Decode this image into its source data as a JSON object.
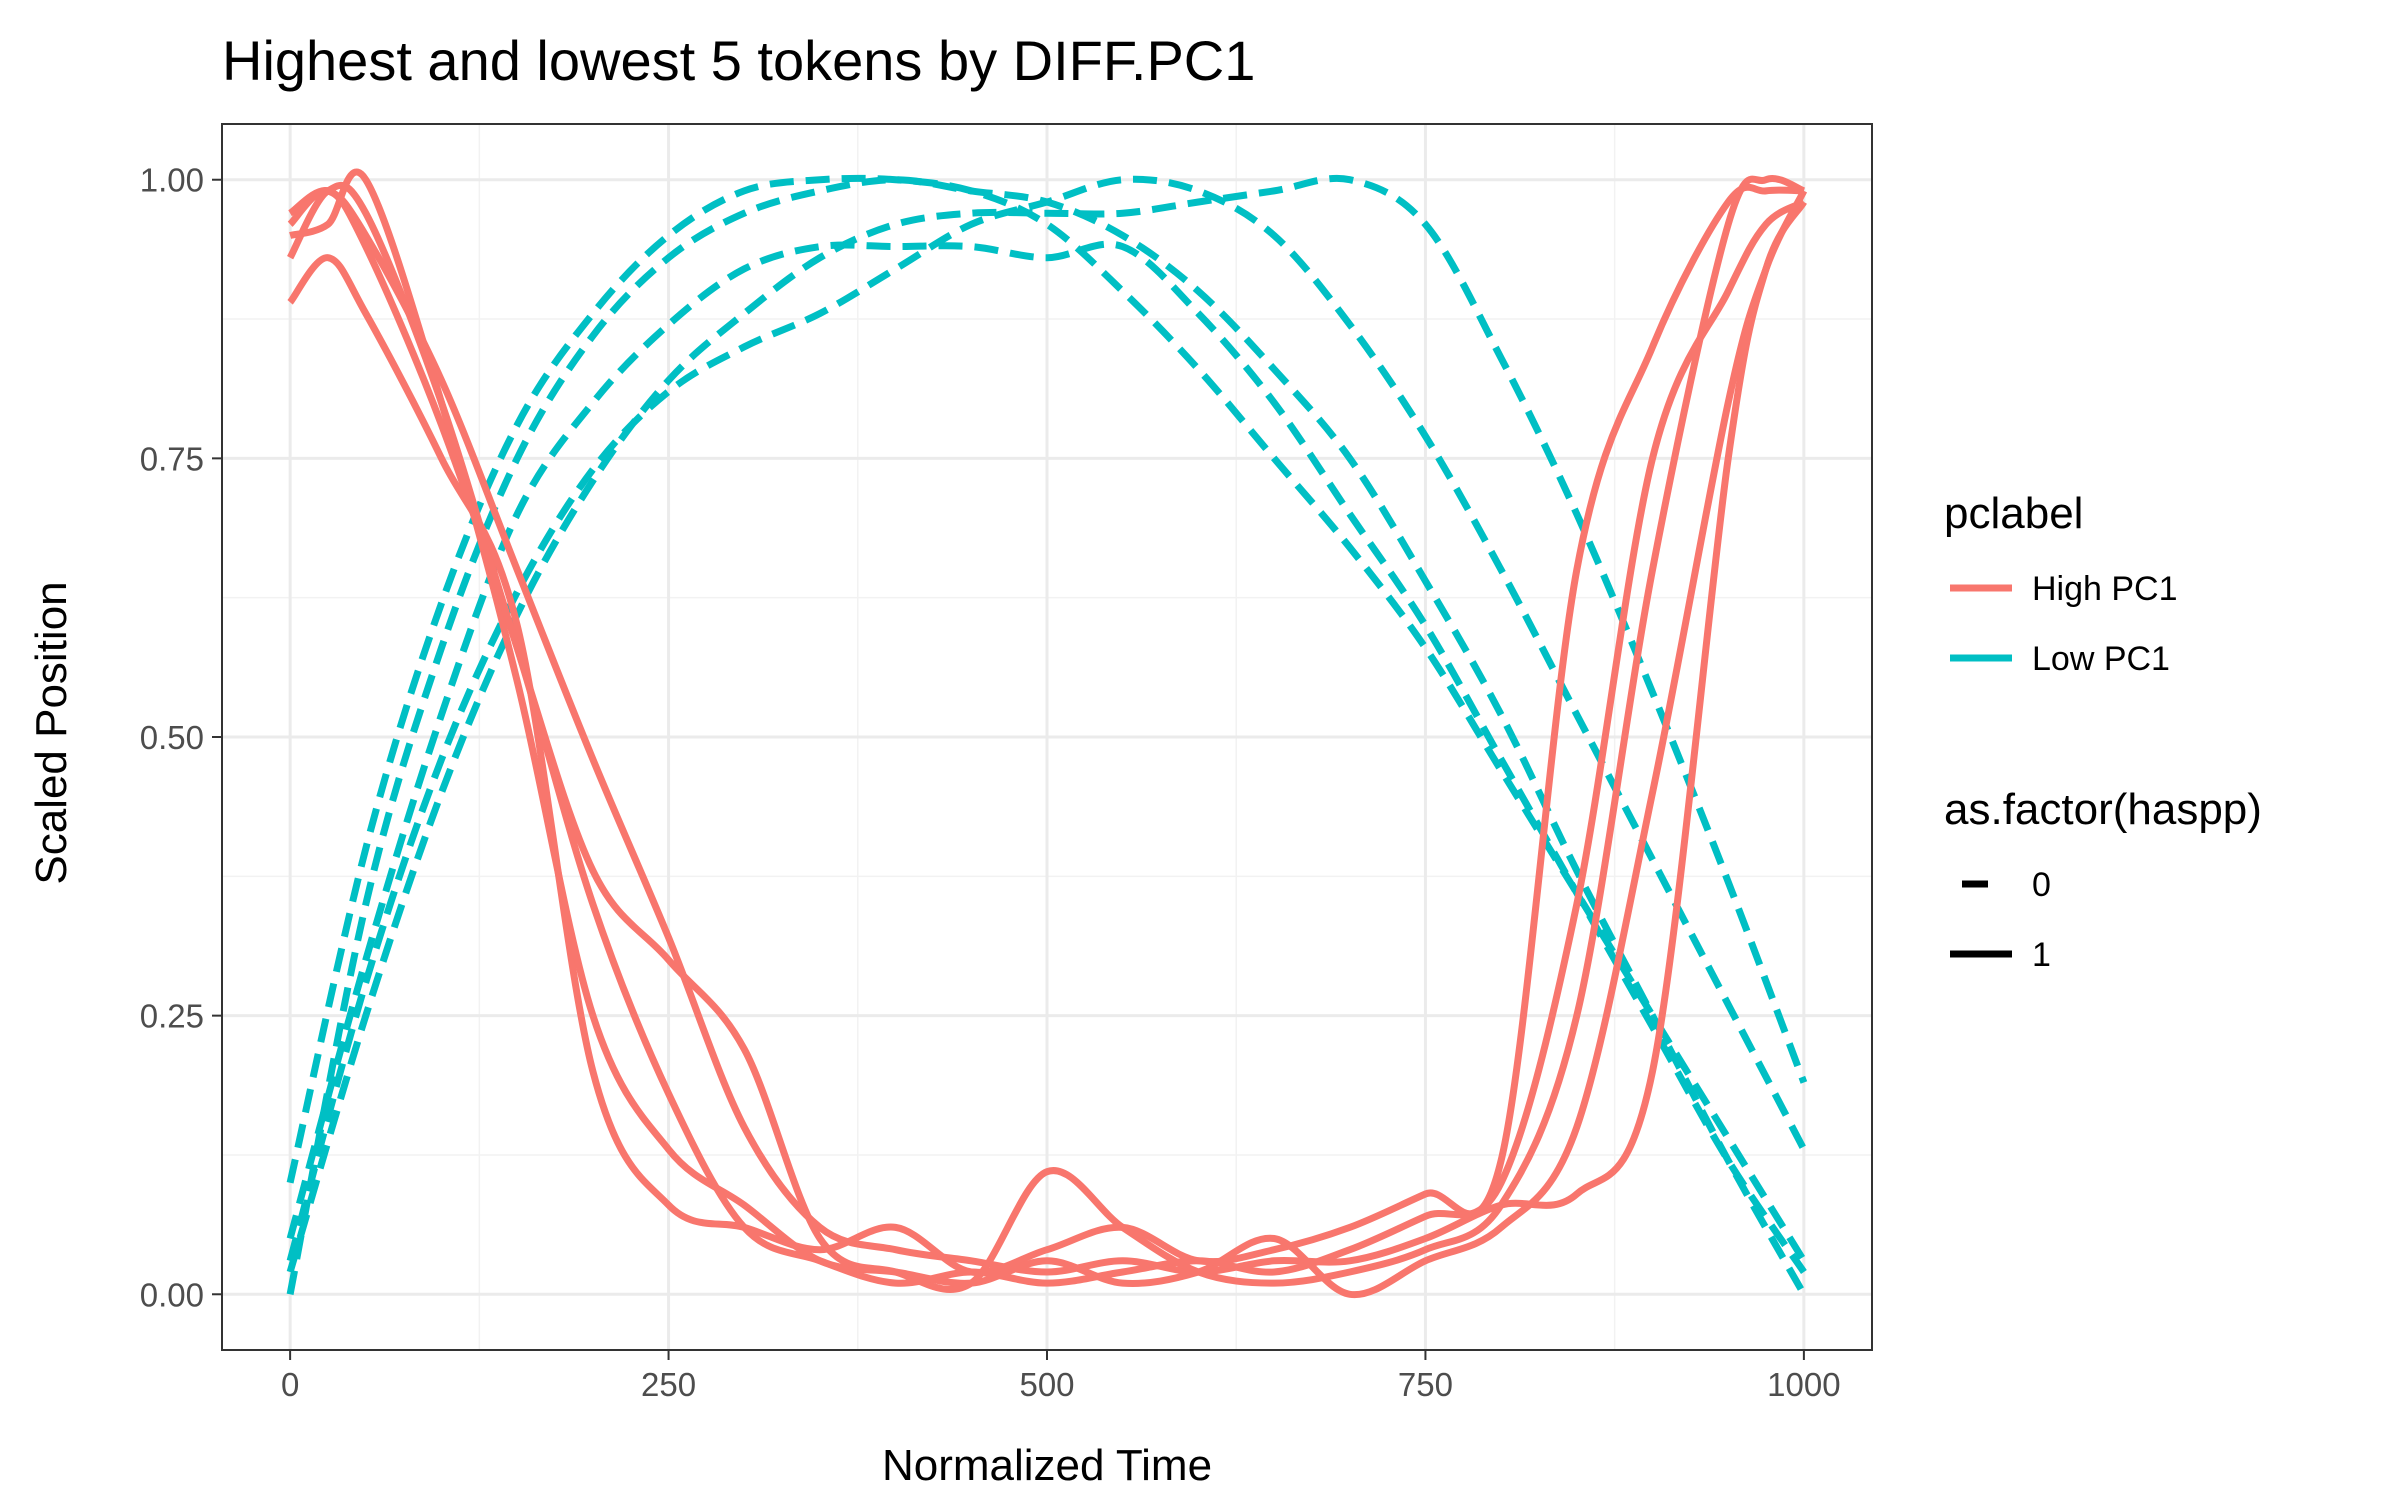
{
  "chart_data": {
    "type": "line",
    "title": "Highest and lowest 5 tokens by DIFF.PC1",
    "xlabel": "Normalized Time",
    "ylabel": "Scaled Position",
    "xlim": [
      -45,
      1045
    ],
    "ylim": [
      -0.05,
      1.05
    ],
    "x_ticks": [
      0,
      250,
      500,
      750,
      1000
    ],
    "x_tick_labels": [
      "0",
      "250",
      "500",
      "750",
      "1000"
    ],
    "y_ticks": [
      0,
      0.25,
      0.5,
      0.75,
      1.0
    ],
    "y_tick_labels": [
      "0.00",
      "0.25",
      "0.50",
      "0.75",
      "1.00"
    ],
    "grid": true,
    "legend_position": "right",
    "legends": [
      {
        "title": "pclabel",
        "entries": [
          {
            "label": "High PC1",
            "color": "#F8766D"
          },
          {
            "label": "Low PC1",
            "color": "#00BFC4"
          }
        ]
      },
      {
        "title": "as.factor(haspp)",
        "entries": [
          {
            "label": "0",
            "linetype": "dashed"
          },
          {
            "label": "1",
            "linetype": "solid"
          }
        ]
      }
    ],
    "series": [
      {
        "group": "High PC1",
        "haspp": "1",
        "x": [
          0,
          25,
          50,
          100,
          150,
          200,
          250,
          300,
          350,
          400,
          450,
          500,
          550,
          600,
          650,
          700,
          750,
          800,
          850,
          900,
          950,
          975,
          1000
        ],
        "y": [
          0.97,
          0.99,
          0.95,
          0.82,
          0.65,
          0.48,
          0.32,
          0.15,
          0.06,
          0.04,
          0.03,
          0.02,
          0.03,
          0.02,
          0.03,
          0.03,
          0.05,
          0.08,
          0.09,
          0.2,
          0.75,
          0.92,
          0.98
        ]
      },
      {
        "group": "High PC1",
        "haspp": "1",
        "x": [
          0,
          25,
          50,
          100,
          150,
          200,
          250,
          300,
          350,
          400,
          450,
          500,
          550,
          600,
          650,
          700,
          750,
          800,
          850,
          900,
          950,
          975,
          1000
        ],
        "y": [
          0.93,
          0.99,
          0.97,
          0.8,
          0.58,
          0.38,
          0.3,
          0.22,
          0.05,
          0.02,
          0.01,
          0.11,
          0.06,
          0.02,
          0.01,
          0.02,
          0.04,
          0.08,
          0.25,
          0.65,
          0.96,
          1.0,
          0.99
        ]
      },
      {
        "group": "High PC1",
        "haspp": "1",
        "x": [
          0,
          25,
          50,
          100,
          150,
          200,
          250,
          300,
          350,
          400,
          450,
          500,
          550,
          600,
          650,
          700,
          750,
          800,
          850,
          900,
          950,
          975,
          1000
        ],
        "y": [
          0.89,
          0.93,
          0.88,
          0.75,
          0.6,
          0.2,
          0.08,
          0.06,
          0.04,
          0.06,
          0.02,
          0.04,
          0.06,
          0.03,
          0.04,
          0.06,
          0.09,
          0.12,
          0.65,
          0.85,
          0.98,
          0.99,
          0.99
        ]
      },
      {
        "group": "High PC1",
        "haspp": "1",
        "x": [
          0,
          25,
          50,
          100,
          150,
          200,
          250,
          300,
          350,
          400,
          450,
          500,
          550,
          600,
          650,
          700,
          750,
          800,
          850,
          900,
          950,
          975,
          1000
        ],
        "y": [
          0.95,
          0.96,
          1.0,
          0.8,
          0.55,
          0.25,
          0.13,
          0.08,
          0.03,
          0.02,
          0.01,
          0.03,
          0.01,
          0.02,
          0.05,
          0.0,
          0.03,
          0.06,
          0.15,
          0.45,
          0.8,
          0.92,
          0.99
        ]
      },
      {
        "group": "High PC1",
        "haspp": "1",
        "x": [
          0,
          25,
          50,
          100,
          150,
          200,
          250,
          300,
          350,
          400,
          450,
          500,
          550,
          600,
          650,
          700,
          750,
          800,
          850,
          900,
          950,
          975,
          1000
        ],
        "y": [
          0.96,
          0.99,
          0.94,
          0.78,
          0.58,
          0.35,
          0.18,
          0.06,
          0.03,
          0.01,
          0.02,
          0.01,
          0.02,
          0.03,
          0.02,
          0.04,
          0.07,
          0.1,
          0.35,
          0.75,
          0.9,
          0.96,
          0.98
        ]
      },
      {
        "group": "Low PC1",
        "haspp": "0",
        "x": [
          0,
          50,
          100,
          150,
          200,
          250,
          300,
          350,
          400,
          450,
          500,
          550,
          600,
          650,
          700,
          750,
          800,
          850,
          900,
          950,
          1000
        ],
        "y": [
          0.0,
          0.35,
          0.58,
          0.75,
          0.86,
          0.93,
          0.97,
          0.99,
          1.0,
          0.99,
          0.98,
          0.95,
          0.9,
          0.83,
          0.75,
          0.64,
          0.52,
          0.38,
          0.25,
          0.12,
          0.0
        ]
      },
      {
        "group": "Low PC1",
        "haspp": "0",
        "x": [
          0,
          50,
          100,
          150,
          200,
          250,
          300,
          350,
          400,
          450,
          500,
          550,
          600,
          650,
          700,
          750,
          800,
          850,
          900,
          950,
          1000
        ],
        "y": [
          0.05,
          0.3,
          0.52,
          0.7,
          0.8,
          0.87,
          0.92,
          0.94,
          0.94,
          0.94,
          0.93,
          0.94,
          0.88,
          0.8,
          0.7,
          0.6,
          0.48,
          0.36,
          0.24,
          0.12,
          0.02
        ]
      },
      {
        "group": "Low PC1",
        "haspp": "0",
        "x": [
          0,
          50,
          100,
          150,
          200,
          250,
          300,
          350,
          400,
          450,
          500,
          550,
          600,
          650,
          700,
          750,
          800,
          850,
          900,
          950,
          1000
        ],
        "y": [
          0.1,
          0.4,
          0.62,
          0.78,
          0.88,
          0.95,
          0.99,
          1.0,
          1.0,
          0.99,
          0.96,
          0.9,
          0.83,
          0.75,
          0.67,
          0.58,
          0.47,
          0.36,
          0.25,
          0.14,
          0.03
        ]
      },
      {
        "group": "Low PC1",
        "haspp": "0",
        "x": [
          0,
          50,
          100,
          150,
          200,
          250,
          300,
          350,
          400,
          450,
          500,
          550,
          600,
          650,
          700,
          750,
          800,
          850,
          900,
          950,
          1000
        ],
        "y": [
          0.03,
          0.28,
          0.48,
          0.63,
          0.74,
          0.81,
          0.85,
          0.88,
          0.92,
          0.96,
          0.98,
          1.0,
          0.99,
          0.95,
          0.87,
          0.77,
          0.65,
          0.52,
          0.39,
          0.26,
          0.13
        ]
      },
      {
        "group": "Low PC1",
        "haspp": "0",
        "x": [
          0,
          50,
          100,
          150,
          200,
          250,
          300,
          350,
          400,
          450,
          500,
          550,
          600,
          650,
          700,
          750,
          800,
          850,
          900,
          950,
          1000
        ],
        "y": [
          0.02,
          0.25,
          0.45,
          0.61,
          0.73,
          0.82,
          0.88,
          0.93,
          0.96,
          0.97,
          0.97,
          0.97,
          0.98,
          0.99,
          1.0,
          0.96,
          0.84,
          0.7,
          0.54,
          0.37,
          0.19
        ]
      }
    ]
  }
}
